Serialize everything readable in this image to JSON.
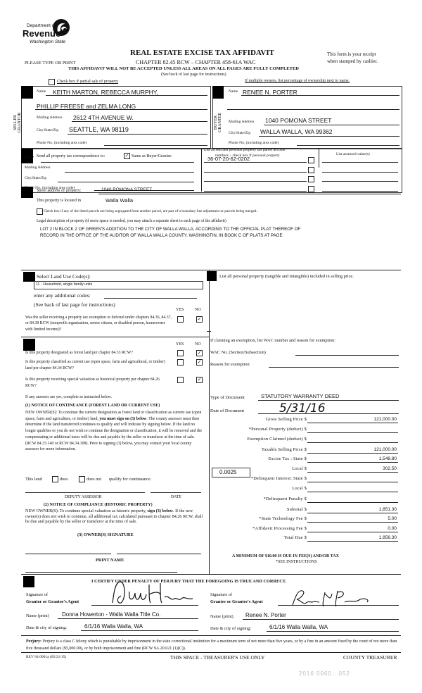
{
  "header": {
    "logo": {
      "line1": "Department of",
      "line2": "Revenue",
      "line3": "Washington State"
    },
    "title": "REAL ESTATE EXCISE TAX AFFIDAVIT",
    "chapter": "CHAPTER 82.45 RCW – CHAPTER 458-61A WAC",
    "please_type": "PLEASE TYPE OR PRINT",
    "receipt_line1": "This form is your receipt",
    "receipt_line2": "when stamped by cashier.",
    "warning": "THIS AFFIDAVIT WILL NOT BE ACCEPTED UNLESS ALL AREAS ON ALL PAGES ARE FULLY COMPLETED",
    "see_back": "(See back of last page for instructions)",
    "partial_sale": "Check box if partial sale of property",
    "multiple_owners": "If multiple owners, list percentage of ownership next to name."
  },
  "seller": {
    "side_label": "SELLER GRANTOR",
    "name_label": "Name",
    "name": "KEITH MARTON, REBECCA MURPHY,",
    "name2": "PHILLIP FREESE and ZELMA LONG",
    "mailing_label": "Mailing Address",
    "mailing": "2612 4TH AVENUE W.",
    "city_label": "City/State/Zip",
    "city": "SEATTLE, WA  98119",
    "phone_label": "Phone No. (including area code)"
  },
  "buyer": {
    "side_label": "BUYER GRANTEE",
    "name_label": "Name",
    "name": "RENEE N. PORTER",
    "mailing_label": "Mailing Address",
    "mailing": "1040 POMONA STREET",
    "city_label": "City/State/Zip",
    "city": "WALLA WALLA, WA  99362",
    "phone_label": "Phone No. (including area code)"
  },
  "correspondence": {
    "label": "Send all property tax correspondence to:",
    "same_as": "Same as Buyer/Grantee",
    "same_checked": true,
    "name_label": "Name",
    "mailing_label": "Mailing Address",
    "city_label": "City/State/Zip",
    "phone_label": "Phone No. (including area code)",
    "parcel_header_line1": "List all real and personal property tax parcel account",
    "parcel_header_line2": "numbers – check box if personal property",
    "assessed_header": "List assessed value(s)",
    "parcels": [
      "36-07-20-62-0202",
      "",
      "",
      ""
    ]
  },
  "property": {
    "street_label": "Street address of property:",
    "street": "1040 POMONA STREET",
    "located_label": "This property is located in",
    "located": "Walla Walla",
    "segregated": "Check box if any of the listed parcels are being segregated from another parcel, are part of a boundary line adjustment or parcels being merged.",
    "legal_label": "Legal description of property (if more space is needed, you may attach a separate sheet to each page of the affidavit)",
    "legal_line1": "LOT 2 IN BLOCK 2 OF GREEN'S ADDITION TO THE CITY OF WALLA WALLA, ACCORDING TO THE OFFICIAL PLAT THEREOF OF",
    "legal_line2": "RECORD IN THE OFFICE OF THE AUDITOR OF WALLA WALLA COUNTY, WASHINGTIN, IN BOOK C OF PLATS AT PAGE"
  },
  "land_use": {
    "label": "Select Land Use Code(s):",
    "code": "11 - Household, single family units",
    "additional": "enter any additional codes:",
    "see_back": "(See back of last page for instructions)",
    "yes": "YES",
    "no": "NO",
    "q_exemption": "Was the seller receiving a property tax exemption or deferral under chapters 84.36, 84.37, or 84.38 RCW (nonprofit organization, senior citizen, or disabled person, homeowner with limited income)?"
  },
  "designation": {
    "yes": "YES",
    "no": "NO",
    "q_forest": "Is this property designated as forest land per chapter 84.33 RCW?",
    "q_current_use": "Is this property classified as current use (open space, farm and agricultural, or timber) land per chapter 84.34 RCW?",
    "q_historic": "Is this property receiving special valuation as historical property per chapter 84.26 RCW?",
    "if_yes": "If any answers are yes, complete as instructed below.",
    "notice1_title": "(1) NOTICE OF CONTINUANCE (FOREST LAND OR CURRENT USE)",
    "notice1_a": "NEW OWNER(S): To continue the current designation as forest land or classification as current use (open space, farm and agriculture, or timber) land,",
    "notice1_bold": "you must sign on (3) below",
    "notice1_b": ". The county assessor must then determine if the land transferred continues to qualify and will indicate by signing below. If the land no longer qualifies or you do not wish to continue the designation or classification, it will be removed and the compensating or additional taxes will be due and payable by the seller or transferor at the time of sale. (RCW 84.33.140 or RCW 84.34.108). Prior to signing (3) below, you may contact your local county assessor for more information.",
    "this_land": "This land",
    "does": "does",
    "does_not": "does not",
    "qualify": "qualify for continuance.",
    "deputy": "DEPUTY ASSESSOR",
    "date": "DATE",
    "notice2_title": "(2) NOTICE OF COMPLIANCE (HISTORIC PROPERTY)",
    "notice2_a": "NEW OWNER(S): To continue special valuation as historic property,",
    "notice2_bold": "sign (3) below",
    "notice2_b": ". If the new owner(s) does not wish to continue, all additional tax calculated pursuant to chapter 84.26 RCW, shall be due and payable by the seller or transferor at the time of sale.",
    "owner_sig": "(3) OWNER(S) SIGNATURE",
    "print_name": "PRINT NAME"
  },
  "personal_property": {
    "label": "List all  personal property (tangible and intangible) included in selling price.",
    "exemption_label": "If claiming an exemption, list WAC number and reason for exemption:",
    "wac_label": "WAC No. (Section/Subsection)",
    "reason_label": "Reason for exemption"
  },
  "tax": {
    "doc_type_label": "Type of Document",
    "doc_type": "STATUTORY WARRANTY DEED",
    "doc_date_label": "Date of Document",
    "doc_date": "5/31/16",
    "local_rate": "0.0025",
    "rows": [
      {
        "label": "Gross Selling Price $",
        "value": "121,000.00"
      },
      {
        "label": "*Personal Property (deduct) $",
        "value": ""
      },
      {
        "label": "Exemption Claimed (deduct) $",
        "value": ""
      },
      {
        "label": "Taxable Selling Price $",
        "value": "121,000.00"
      },
      {
        "label": "Excise Tax : State $",
        "value": "1,548.80"
      },
      {
        "label": "Local $",
        "value": "302.50"
      },
      {
        "label": "*Delinquent Interest: State $",
        "value": ""
      },
      {
        "label": "Local $",
        "value": ""
      },
      {
        "label": "*Delinquent Penalty $",
        "value": ""
      },
      {
        "label": "Subtotal $",
        "value": "1,851.30"
      },
      {
        "label": "*State Technology Fee $",
        "value": "5.00"
      },
      {
        "label": "*Affidavit Processing Fee $",
        "value": "0.00"
      },
      {
        "label": "Total Due $",
        "value": "1,856.30"
      }
    ],
    "minimum": "A MINIMUM OF $10.00 IS DUE IN FEE(S) AND/OR TAX",
    "see_instructions": "*SEE INSTRUCTIONS"
  },
  "certify": {
    "statement": "I CERTIFY UNDER PENALTY OF PERJURY THAT THE FOREGOING IS TRUE AND CORRECT.",
    "grantor_sig_label1": "Signature of",
    "grantor_sig_label2": "Grantor or Grantor's Agent",
    "grantor_name_label": "Name (print)",
    "grantor_name": "Donna Howerton - Walla Walla Title Co.",
    "grantor_date_label": "Date & city of signing:",
    "grantor_date": "6/1/16  Walla Walla, WA",
    "grantee_sig_label1": "Signature of",
    "grantee_sig_label2": "Grantee or Grantee's Agent",
    "grantee_name_label": "Name (print)",
    "grantee_name": "Renee N. Porter",
    "grantee_date_label": "Date & city of signing:",
    "grantee_date": "6/1/16  Walla Walla, WA",
    "perjury_bold": "Perjury:",
    "perjury": " Perjury is a class C felony which is punishable by imprisonment in the state correctional institution for a maximum term of not more than five years, or by a fine in an amount fixed by the court of not more than five thousand dollars ($5,000.00), or by both imprisonment and fine (RCW 9A.20.021 (1)(C))."
  },
  "footer": {
    "rev": "REV 84 0001a (05/21/15)",
    "treasurer_space": "THIS SPACE - TREASURER'S USE ONLY",
    "county_treasurer": "COUNTY TREASURER",
    "stamp": "2016 0060...052"
  },
  "colors": {
    "ink": "#111111",
    "stamp": "#bbbbbb"
  }
}
